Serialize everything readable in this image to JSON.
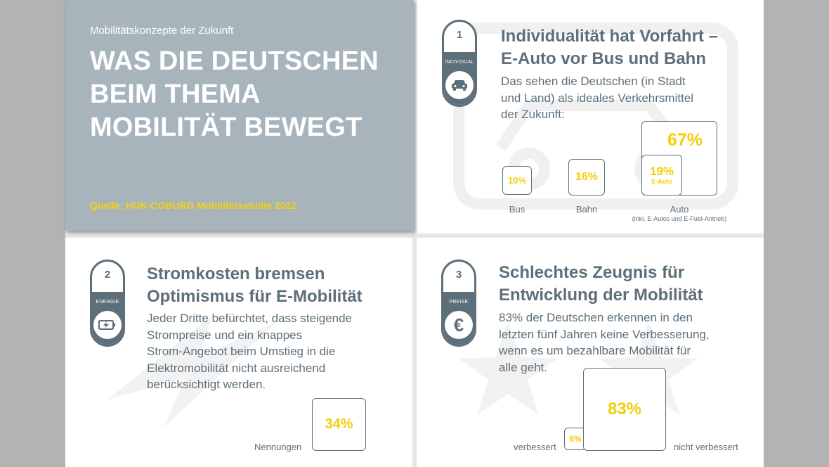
{
  "header": {
    "kicker": "Mobilitätskonzepte der Zukunft",
    "title": "WAS DIE DEUTSCHEN BEIM THEMA MOBILITÄT BEWEGT",
    "source": "Quelle: HUK-COBURG Mobilitätsstudie 2022"
  },
  "colors": {
    "dark": "#5d6f7b",
    "accent": "#f2cf0a",
    "hero_bg": "#a7b4bc"
  },
  "sections": [
    {
      "number": "1",
      "tag": "INDIVIDUAL",
      "icon": "car-icon",
      "title_line1": "Individualität hat Vorfahrt –",
      "title_line2": "E-Auto vor Bus und Bahn",
      "body_lines": [
        "Das sehen die Deutschen (in Stadt",
        "und Land) als ideales Verkehrsmittel",
        "der Zukunft:"
      ]
    },
    {
      "number": "2",
      "tag": "ENERGIE",
      "icon": "battery-icon",
      "title_line1": "Stromkosten bremsen",
      "title_line2": "Optimismus für E-Mobilität",
      "body_lines": [
        "Jeder Dritte befürchtet, dass steigende",
        "Strompreise und ein knappes",
        "Strom-Angebot beim Umstieg in die",
        "Elektromobilität nicht ausreichend",
        "berücksichtigt werden."
      ]
    },
    {
      "number": "3",
      "tag": "PREISE",
      "icon": "euro-icon",
      "title_line1": "Schlechtes Zeugnis für",
      "title_line2": "Entwicklung der Mobilität",
      "body_lines": [
        "83% der Deutschen erkennen in den",
        "letzten fünf Jahren keine Verbesserung,",
        "wenn es um bezahlbare Mobilität für",
        "alle geht."
      ]
    }
  ],
  "chart_data": [
    {
      "type": "bar",
      "categories": [
        "Bus",
        "Bahn",
        "Auto"
      ],
      "values": [
        10,
        16,
        67
      ],
      "value_labels": [
        "10%",
        "16%",
        "67%"
      ],
      "subset": {
        "of": "Auto",
        "name": "E-Auto",
        "value": 19,
        "label": "19%"
      },
      "category_note": "(inkl. E-Autos und E-Fuel-Antrieb)"
    },
    {
      "type": "bar",
      "categories": [
        "Nennungen"
      ],
      "values": [
        34
      ],
      "value_labels": [
        "34%"
      ]
    },
    {
      "type": "bar",
      "categories": [
        "verbessert",
        "nicht verbessert"
      ],
      "values": [
        6,
        83
      ],
      "value_labels": [
        "6%",
        "83%"
      ]
    }
  ]
}
